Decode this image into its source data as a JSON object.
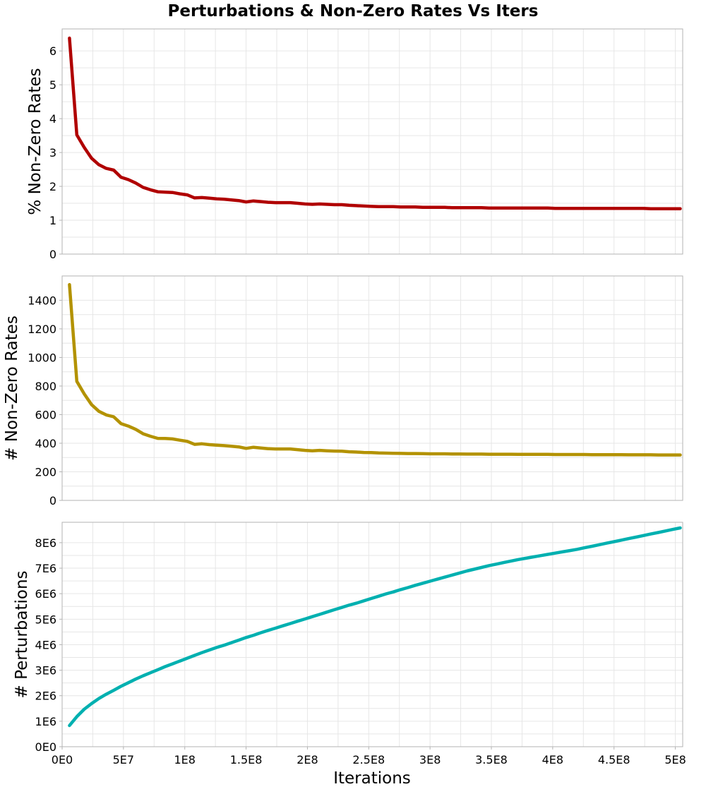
{
  "chart_data": {
    "type": "line",
    "title": "Perturbations & Non-Zero Rates Vs Iters",
    "xlabel": "Iterations",
    "x_ticks": [
      "0E0",
      "5E7",
      "1E8",
      "1.5E8",
      "2E8",
      "2.5E8",
      "3E8",
      "3.5E8",
      "4E8",
      "4.5E8",
      "5E8"
    ],
    "x_tick_values": [
      0,
      50000000,
      100000000,
      150000000,
      200000000,
      250000000,
      300000000,
      350000000,
      400000000,
      450000000,
      500000000
    ],
    "xlim": [
      0,
      506000000
    ],
    "grid": true,
    "x": [
      6000000,
      12000000,
      18000000,
      24000000,
      30000000,
      36000000,
      42000000,
      48000000,
      54000000,
      60000000,
      66000000,
      72000000,
      78000000,
      84000000,
      90000000,
      96000000,
      102000000,
      108000000,
      114000000,
      120000000,
      126000000,
      132000000,
      138000000,
      144000000,
      150000000,
      156000000,
      162000000,
      168000000,
      174000000,
      180000000,
      186000000,
      192000000,
      198000000,
      204000000,
      210000000,
      216000000,
      222000000,
      228000000,
      234000000,
      240000000,
      246000000,
      252000000,
      258000000,
      264000000,
      270000000,
      276000000,
      282000000,
      288000000,
      294000000,
      300000000,
      306000000,
      312000000,
      318000000,
      324000000,
      330000000,
      336000000,
      342000000,
      348000000,
      354000000,
      360000000,
      366000000,
      372000000,
      378000000,
      384000000,
      390000000,
      396000000,
      402000000,
      408000000,
      414000000,
      420000000,
      426000000,
      432000000,
      438000000,
      444000000,
      450000000,
      456000000,
      462000000,
      468000000,
      474000000,
      480000000,
      486000000,
      492000000,
      498000000,
      504000000
    ],
    "panels": [
      {
        "ylabel": "% Non-Zero Rates",
        "ylim": [
          0,
          6.65
        ],
        "y_ticks": [
          "0",
          "1",
          "2",
          "3",
          "4",
          "5",
          "6"
        ],
        "y_tick_values": [
          0,
          1,
          2,
          3,
          4,
          5,
          6
        ],
        "color": "#b00000",
        "series": [
          {
            "values": [
              6.38,
              3.52,
              3.15,
              2.83,
              2.64,
              2.53,
              2.48,
              2.27,
              2.2,
              2.1,
              1.97,
              1.9,
              1.84,
              1.83,
              1.82,
              1.78,
              1.75,
              1.66,
              1.67,
              1.65,
              1.63,
              1.62,
              1.6,
              1.58,
              1.54,
              1.57,
              1.55,
              1.53,
              1.52,
              1.52,
              1.52,
              1.5,
              1.48,
              1.47,
              1.48,
              1.47,
              1.46,
              1.46,
              1.44,
              1.43,
              1.42,
              1.41,
              1.4,
              1.4,
              1.4,
              1.39,
              1.39,
              1.39,
              1.38,
              1.38,
              1.38,
              1.38,
              1.37,
              1.37,
              1.37,
              1.37,
              1.37,
              1.36,
              1.36,
              1.36,
              1.36,
              1.36,
              1.36,
              1.36,
              1.36,
              1.36,
              1.35,
              1.35,
              1.35,
              1.35,
              1.35,
              1.35,
              1.35,
              1.35,
              1.35,
              1.35,
              1.35,
              1.35,
              1.35,
              1.34,
              1.34,
              1.34,
              1.34,
              1.34
            ]
          }
        ]
      },
      {
        "ylabel": "# Non-Zero Rates",
        "ylim": [
          0,
          1570
        ],
        "y_ticks": [
          "0",
          "200",
          "400",
          "600",
          "800",
          "1000",
          "1200",
          "1400"
        ],
        "y_tick_values": [
          0,
          200,
          400,
          600,
          800,
          1000,
          1200,
          1400
        ],
        "color": "#b39200",
        "series": [
          {
            "values": [
              1510,
              833,
              745,
              670,
              623,
              598,
              585,
              537,
              520,
              497,
              466,
              449,
              434,
              433,
              430,
              421,
              413,
              392,
              396,
              390,
              386,
              383,
              379,
              374,
              364,
              372,
              367,
              362,
              360,
              360,
              360,
              355,
              350,
              347,
              350,
              347,
              345,
              344,
              340,
              338,
              335,
              334,
              332,
              331,
              330,
              329,
              328,
              328,
              327,
              326,
              326,
              326,
              325,
              325,
              324,
              324,
              324,
              323,
              323,
              323,
              323,
              322,
              322,
              322,
              322,
              322,
              321,
              321,
              321,
              321,
              321,
              320,
              320,
              320,
              320,
              320,
              319,
              319,
              319,
              319,
              318,
              318,
              318,
              318
            ]
          }
        ]
      },
      {
        "ylabel": "# Perturbations",
        "ylim": [
          0,
          8800000
        ],
        "y_ticks": [
          "0E0",
          "1E6",
          "2E6",
          "3E6",
          "4E6",
          "5E6",
          "6E6",
          "7E6",
          "8E6"
        ],
        "y_tick_values": [
          0,
          1000000,
          2000000,
          3000000,
          4000000,
          5000000,
          6000000,
          7000000,
          8000000
        ],
        "color": "#00b0b0",
        "series": [
          {
            "values": [
              830000,
              1180000,
              1470000,
              1690000,
              1890000,
              2060000,
              2210000,
              2370000,
              2510000,
              2650000,
              2780000,
              2900000,
              3020000,
              3140000,
              3250000,
              3360000,
              3470000,
              3580000,
              3690000,
              3790000,
              3890000,
              3980000,
              4080000,
              4180000,
              4280000,
              4370000,
              4470000,
              4560000,
              4650000,
              4740000,
              4830000,
              4920000,
              5010000,
              5100000,
              5190000,
              5280000,
              5370000,
              5460000,
              5550000,
              5630000,
              5720000,
              5810000,
              5900000,
              5990000,
              6070000,
              6160000,
              6240000,
              6330000,
              6410000,
              6490000,
              6570000,
              6650000,
              6730000,
              6810000,
              6890000,
              6960000,
              7030000,
              7100000,
              7160000,
              7220000,
              7280000,
              7340000,
              7390000,
              7440000,
              7490000,
              7540000,
              7590000,
              7640000,
              7690000,
              7740000,
              7800000,
              7860000,
              7920000,
              7980000,
              8040000,
              8100000,
              8160000,
              8220000,
              8280000,
              8340000,
              8400000,
              8460000,
              8520000,
              8580000
            ]
          }
        ]
      }
    ]
  }
}
